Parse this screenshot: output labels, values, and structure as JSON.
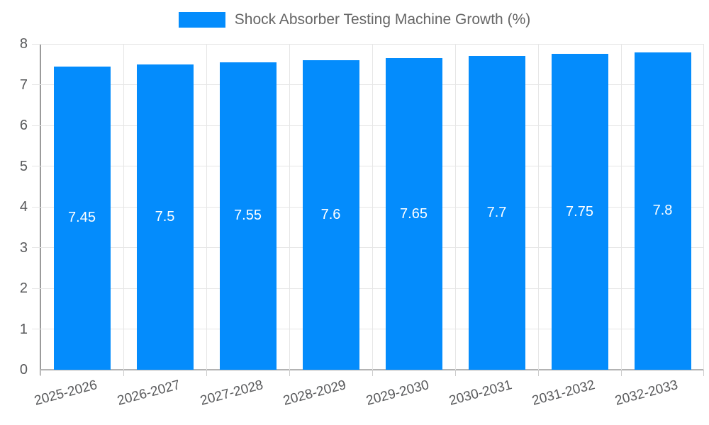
{
  "chart_data": {
    "type": "bar",
    "title": "Shock Absorber Testing Machine Growth (%)",
    "legend": {
      "position": "top-center",
      "label": "Shock Absorber Testing Machine Growth (%)"
    },
    "categories": [
      "2025-2026",
      "2026-2027",
      "2027-2028",
      "2028-2029",
      "2029-2030",
      "2030-2031",
      "2031-2032",
      "2032-2033"
    ],
    "values": [
      7.45,
      7.5,
      7.55,
      7.6,
      7.65,
      7.7,
      7.75,
      7.8
    ],
    "bar_labels": [
      "7.45",
      "7.5",
      "7.55",
      "7.6",
      "7.65",
      "7.7",
      "7.75",
      "7.8"
    ],
    "xlabel": "",
    "ylabel": "",
    "ylim": [
      0,
      8
    ],
    "yticks": [
      0,
      1,
      2,
      3,
      4,
      5,
      6,
      7,
      8
    ],
    "grid": true,
    "x_label_rotation_deg": -15,
    "colors": {
      "bar": "#048cfc",
      "bar_value_text": "#ffffff",
      "grid_line": "#e6e6e6",
      "axis_line": "#9b9b9b",
      "tick_text": "#58595b",
      "legend_text": "#666666"
    }
  }
}
